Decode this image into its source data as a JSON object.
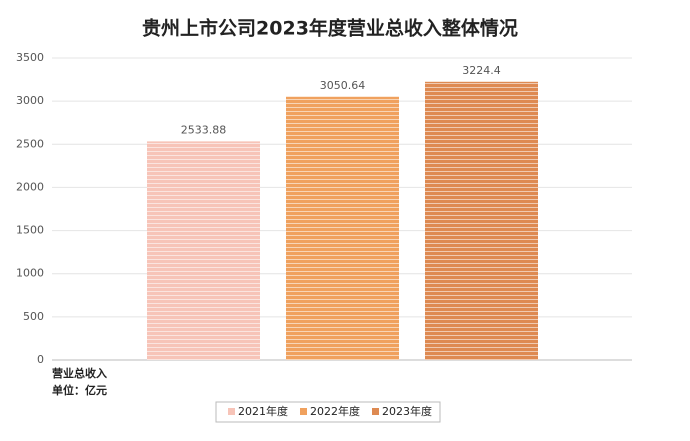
{
  "chart_data": {
    "type": "bar",
    "title": "贵州上市公司2023年度营业总收入整体情况",
    "categories": [
      "营业总收入"
    ],
    "unit_label": "单位：亿元",
    "series": [
      {
        "name": "2021年度",
        "color": "#f7c4b8",
        "values": [
          2533.88
        ]
      },
      {
        "name": "2022年度",
        "color": "#f0a15e",
        "values": [
          3050.64
        ]
      },
      {
        "name": "2023年度",
        "color": "#de8a52",
        "values": [
          3224.4
        ]
      }
    ],
    "ylim": [
      0,
      3500
    ],
    "yticks": [
      0,
      500,
      1000,
      1500,
      2000,
      2500,
      3000,
      3500
    ],
    "grid": true,
    "legend": "bottom"
  }
}
